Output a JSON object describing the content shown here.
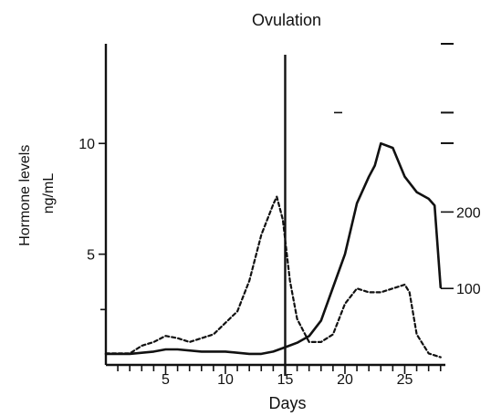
{
  "chart_data": {
    "type": "line",
    "annotation": "Ovulation",
    "xlabel": "Days",
    "ylabel_line1": "Hormone levels",
    "ylabel_line2": "ng/mL",
    "xlim": [
      0,
      28.4
    ],
    "x_ticks": [
      5,
      10,
      15,
      20,
      25
    ],
    "left_axis": {
      "ylim": [
        0,
        14.5
      ],
      "ticks": [
        5,
        10
      ]
    },
    "right_axis": {
      "ylim": [
        0,
        420
      ],
      "ticks": [
        100,
        200
      ]
    },
    "ovulation_day": 15,
    "grid": false,
    "series": [
      {
        "axis": "left",
        "style": "solid",
        "x": [
          0,
          2,
          4,
          5,
          6,
          8,
          10,
          12,
          13,
          14,
          15,
          16,
          17,
          18,
          19,
          20,
          21,
          22,
          22.5,
          23,
          24,
          25,
          26,
          27,
          27.5,
          28
        ],
        "y": [
          0.5,
          0.5,
          0.6,
          0.7,
          0.7,
          0.6,
          0.6,
          0.5,
          0.5,
          0.6,
          0.8,
          1.0,
          1.3,
          2.0,
          3.5,
          5.0,
          7.3,
          8.5,
          9.0,
          10.0,
          9.8,
          8.5,
          7.8,
          7.5,
          7.2,
          3.5
        ]
      },
      {
        "axis": "right",
        "style": "dashed",
        "x": [
          0,
          2,
          3,
          4,
          5,
          6,
          7,
          9,
          11,
          12,
          13,
          14,
          14.3,
          14.8,
          15.4,
          16,
          17,
          18,
          19,
          20,
          21,
          22,
          23,
          24,
          25,
          25.4,
          26,
          27,
          28
        ],
        "y": [
          15,
          15,
          25,
          30,
          38,
          35,
          30,
          40,
          70,
          110,
          170,
          210,
          220,
          190,
          110,
          60,
          30,
          30,
          40,
          80,
          100,
          95,
          95,
          100,
          105,
          95,
          40,
          15,
          10
        ]
      }
    ],
    "right_axis_marks": [
      290,
      330,
      420
    ]
  }
}
